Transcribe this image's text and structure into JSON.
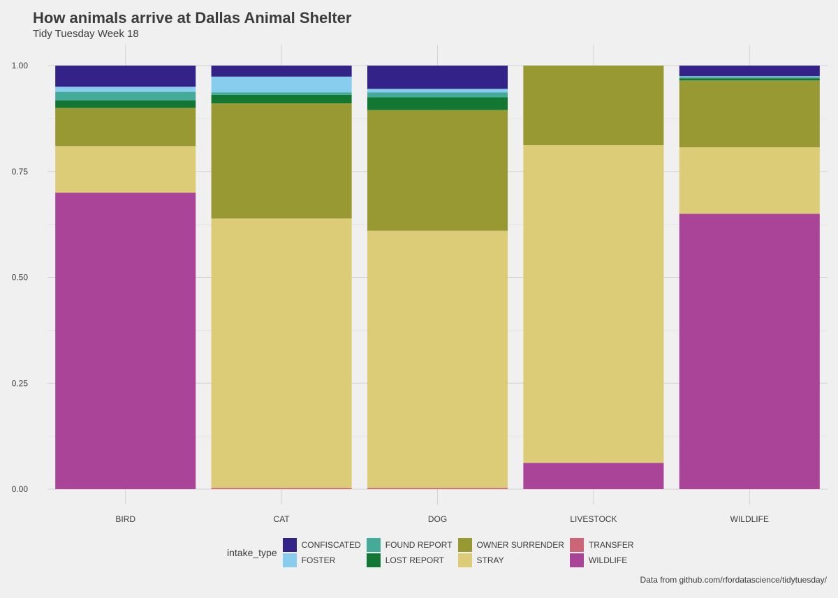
{
  "title": "How animals arrive at Dallas Animal Shelter",
  "subtitle": "Tidy Tuesday Week 18",
  "caption": "Data from github.com/rfordatascience/tidytuesday/",
  "legend_title": "intake_type",
  "chart_data": {
    "type": "bar",
    "stacked": true,
    "title": "How animals arrive at Dallas Animal Shelter",
    "subtitle": "Tidy Tuesday Week 18",
    "xlabel": "",
    "ylabel": "",
    "ylim": [
      0,
      1
    ],
    "yticks": [
      "0.00",
      "0.25",
      "0.50",
      "0.75",
      "1.00"
    ],
    "grid": true,
    "legend_position": "bottom",
    "legend_title": "intake_type",
    "categories": [
      "BIRD",
      "CAT",
      "DOG",
      "LIVESTOCK",
      "WILDLIFE"
    ],
    "series": [
      {
        "name": "TRANSFER",
        "color": "#cc6677",
        "values": [
          0.0,
          0.003,
          0.003,
          0.0,
          0.0
        ]
      },
      {
        "name": "WILDLIFE",
        "color": "#aa4499",
        "values": [
          0.7,
          0.0,
          0.0,
          0.062,
          0.65
        ]
      },
      {
        "name": "STRAY",
        "color": "#ddcc77",
        "values": [
          0.11,
          0.636,
          0.607,
          0.75,
          0.157
        ]
      },
      {
        "name": "OWNER SURRENDER",
        "color": "#999933",
        "values": [
          0.09,
          0.272,
          0.285,
          0.188,
          0.158
        ]
      },
      {
        "name": "LOST REPORT",
        "color": "#117733",
        "values": [
          0.018,
          0.02,
          0.03,
          0.0,
          0.005
        ]
      },
      {
        "name": "FOUND REPORT",
        "color": "#44aa99",
        "values": [
          0.02,
          0.006,
          0.012,
          0.0,
          0.003
        ]
      },
      {
        "name": "FOSTER",
        "color": "#88ccee",
        "values": [
          0.012,
          0.037,
          0.008,
          0.0,
          0.002
        ]
      },
      {
        "name": "CONFISCATED",
        "color": "#332288",
        "values": [
          0.05,
          0.026,
          0.055,
          0.0,
          0.025
        ]
      }
    ]
  },
  "legend_items": [
    {
      "name": "CONFISCATED",
      "color": "#332288"
    },
    {
      "name": "FOSTER",
      "color": "#88ccee"
    },
    {
      "name": "FOUND REPORT",
      "color": "#44aa99"
    },
    {
      "name": "LOST REPORT",
      "color": "#117733"
    },
    {
      "name": "OWNER SURRENDER",
      "color": "#999933"
    },
    {
      "name": "STRAY",
      "color": "#ddcc77"
    },
    {
      "name": "TRANSFER",
      "color": "#cc6677"
    },
    {
      "name": "WILDLIFE",
      "color": "#aa4499"
    }
  ]
}
